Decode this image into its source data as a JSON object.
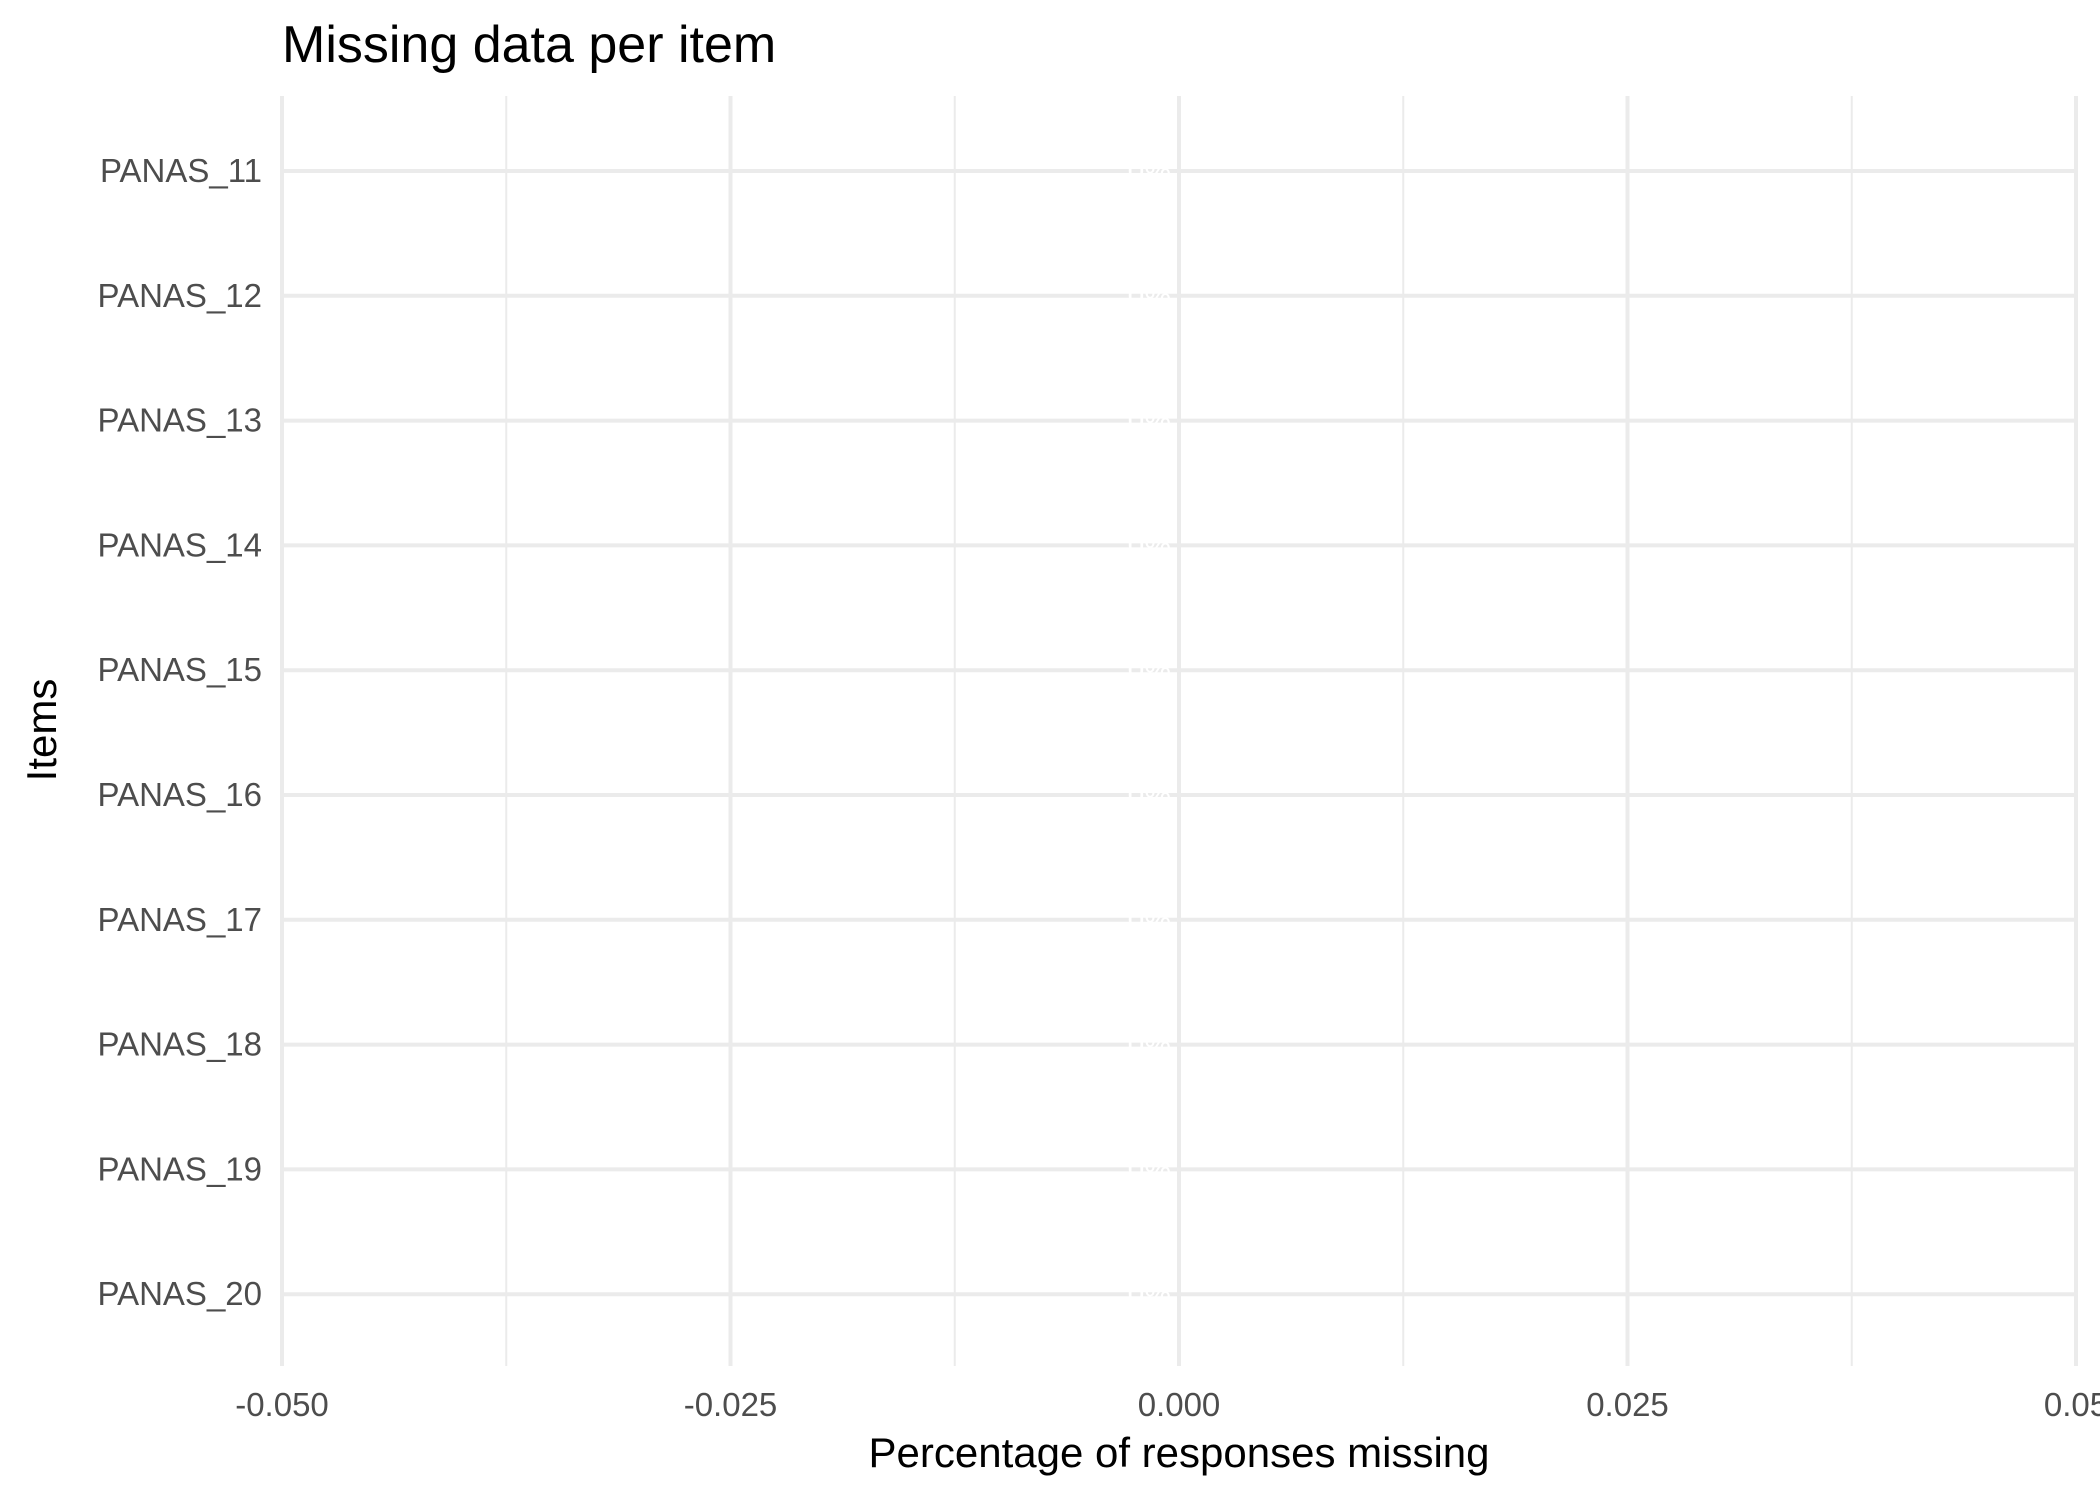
{
  "chart_data": {
    "type": "bar",
    "orientation": "horizontal",
    "title": "Missing data per item",
    "xlabel": "Percentage of responses missing",
    "ylabel": "Items",
    "categories": [
      "PANAS_11",
      "PANAS_12",
      "PANAS_13",
      "PANAS_14",
      "PANAS_15",
      "PANAS_16",
      "PANAS_17",
      "PANAS_18",
      "PANAS_19",
      "PANAS_20"
    ],
    "values": [
      0,
      0,
      0,
      0,
      0,
      0,
      0,
      0,
      0,
      0
    ],
    "bar_labels": [
      "0%",
      "0%",
      "0%",
      "0%",
      "0%",
      "0%",
      "0%",
      "0%",
      "0%",
      "0%"
    ],
    "xlim": [
      -0.05,
      0.05
    ],
    "x_ticks": [
      -0.05,
      -0.025,
      0,
      0.025,
      0.05
    ],
    "x_tick_labels": [
      "-0.050",
      "-0.025",
      "0.000",
      "0.025",
      "0.05"
    ],
    "x_minor_ticks": [
      -0.0375,
      -0.0125,
      0.0125,
      0.0375
    ],
    "grid": true,
    "legend": "none",
    "colors": {
      "grid": "#ebebeb",
      "tick_text": "#4d4d4d",
      "bar_label": "#ffffff"
    }
  }
}
